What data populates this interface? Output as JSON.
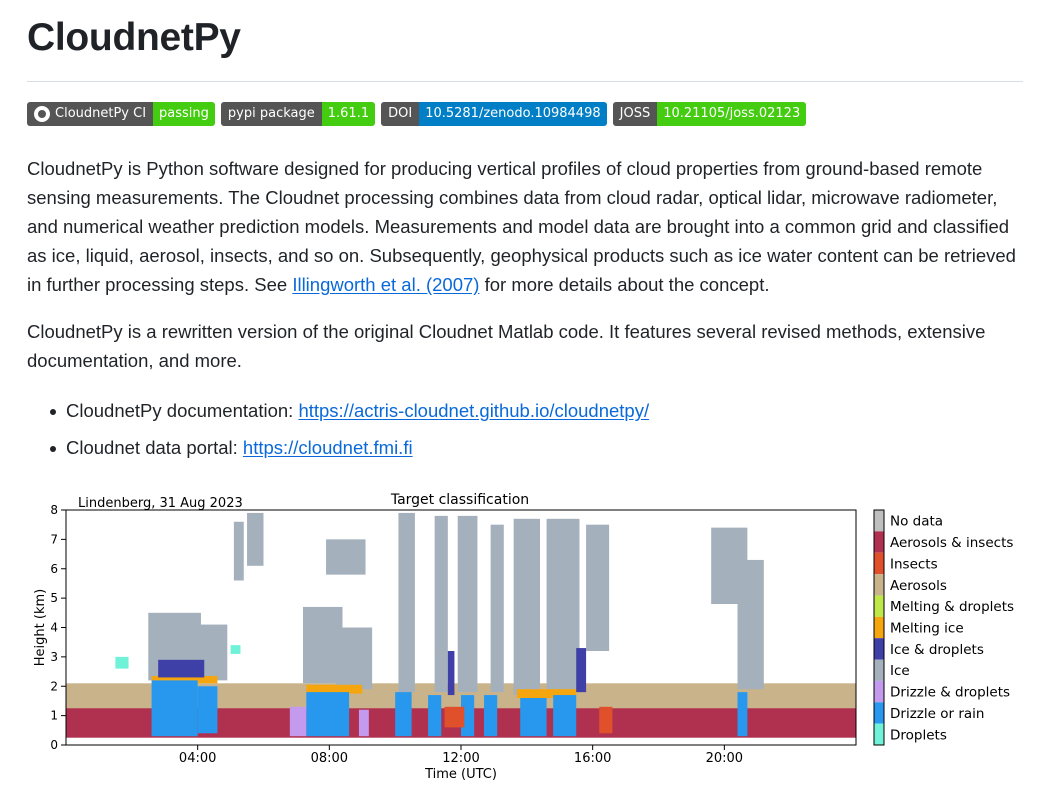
{
  "title": "CloudnetPy",
  "badges": [
    {
      "label": "CloudnetPy CI",
      "value": "passing",
      "color": "#4c1",
      "icon": "github-icon"
    },
    {
      "label": "pypi package",
      "value": "1.61.1",
      "color": "#4c1"
    },
    {
      "label": "DOI",
      "value": "10.5281/zenodo.10984498",
      "color": "#007ec6"
    },
    {
      "label": "JOSS",
      "value": "10.21105/joss.02123",
      "color": "#4c1"
    }
  ],
  "intro": {
    "before": "CloudnetPy is Python software designed for producing vertical profiles of cloud properties from ground-based remote sensing measurements. The Cloudnet processing combines data from cloud radar, optical lidar, microwave radiometer, and numerical weather prediction models. Measurements and model data are brought into a common grid and classified as ice, liquid, aerosol, insects, and so on. Subsequently, geophysical products such as ice water content can be retrieved in further processing steps. See ",
    "link": "Illingworth et al. (2007)",
    "after": " for more details about the concept."
  },
  "rewrite": "CloudnetPy is a rewritten version of the original Cloudnet Matlab code. It features several revised methods, extensive documentation, and more.",
  "links": [
    {
      "label": "CloudnetPy documentation: ",
      "url": "https://actris-cloudnet.github.io/cloudnetpy/"
    },
    {
      "label": "Cloudnet data portal: ",
      "url": "https://cloudnet.fmi.fi"
    }
  ],
  "chart_data": {
    "type": "heatmap",
    "title": "Target classification",
    "subtitle": "Lindenberg, 31 Aug 2023",
    "xlabel": "Time (UTC)",
    "ylabel": "Height (km)",
    "xlim": [
      0,
      24
    ],
    "ylim": [
      0,
      8
    ],
    "xticks": [
      4,
      8,
      12,
      16,
      20
    ],
    "xtick_labels": [
      "04:00",
      "08:00",
      "12:00",
      "16:00",
      "20:00"
    ],
    "yticks": [
      0,
      1,
      2,
      3,
      4,
      5,
      6,
      7,
      8
    ],
    "legend_placement": "right",
    "classes": [
      {
        "name": "No data",
        "color": "#bfbfbf"
      },
      {
        "name": "Aerosols & insects",
        "color": "#b03050"
      },
      {
        "name": "Insects",
        "color": "#e0502a"
      },
      {
        "name": "Aerosols",
        "color": "#c9b38a"
      },
      {
        "name": "Melting & droplets",
        "color": "#bde847"
      },
      {
        "name": "Melting ice",
        "color": "#f5a50d"
      },
      {
        "name": "Ice & droplets",
        "color": "#3f3fa8"
      },
      {
        "name": "Ice",
        "color": "#a4b1bc"
      },
      {
        "name": "Drizzle & droplets",
        "color": "#c49aee"
      },
      {
        "name": "Drizzle or rain",
        "color": "#2898ee"
      },
      {
        "name": "Droplets",
        "color": "#6ff2d8"
      }
    ],
    "regions": [
      {
        "cls": 3,
        "x0": 0,
        "x1": 24,
        "y0": 0.25,
        "y1": 2.1
      },
      {
        "cls": 1,
        "x0": 0,
        "x1": 24,
        "y0": 0.25,
        "y1": 1.25
      },
      {
        "cls": 7,
        "x0": 2.5,
        "x1": 4.1,
        "y0": 2.2,
        "y1": 4.5
      },
      {
        "cls": 7,
        "x0": 3.7,
        "x1": 4.9,
        "y0": 2.2,
        "y1": 4.1
      },
      {
        "cls": 7,
        "x0": 5.1,
        "x1": 5.4,
        "y0": 5.6,
        "y1": 7.6
      },
      {
        "cls": 7,
        "x0": 5.5,
        "x1": 6.0,
        "y0": 6.1,
        "y1": 7.9
      },
      {
        "cls": 7,
        "x0": 7.2,
        "x1": 8.4,
        "y0": 2.1,
        "y1": 4.7
      },
      {
        "cls": 7,
        "x0": 8.2,
        "x1": 9.3,
        "y0": 1.9,
        "y1": 4.0
      },
      {
        "cls": 7,
        "x0": 7.9,
        "x1": 9.1,
        "y0": 5.8,
        "y1": 7.0
      },
      {
        "cls": 7,
        "x0": 10.1,
        "x1": 10.6,
        "y0": 1.8,
        "y1": 7.9
      },
      {
        "cls": 7,
        "x0": 11.2,
        "x1": 11.6,
        "y0": 1.8,
        "y1": 7.8
      },
      {
        "cls": 7,
        "x0": 11.9,
        "x1": 12.5,
        "y0": 1.8,
        "y1": 7.8
      },
      {
        "cls": 7,
        "x0": 12.9,
        "x1": 13.3,
        "y0": 1.8,
        "y1": 7.5
      },
      {
        "cls": 7,
        "x0": 13.6,
        "x1": 14.4,
        "y0": 1.7,
        "y1": 7.7
      },
      {
        "cls": 7,
        "x0": 14.6,
        "x1": 15.6,
        "y0": 1.9,
        "y1": 7.7
      },
      {
        "cls": 7,
        "x0": 15.8,
        "x1": 16.5,
        "y0": 3.2,
        "y1": 7.5
      },
      {
        "cls": 7,
        "x0": 19.6,
        "x1": 20.7,
        "y0": 4.8,
        "y1": 7.4
      },
      {
        "cls": 7,
        "x0": 20.4,
        "x1": 21.2,
        "y0": 1.9,
        "y1": 6.3
      },
      {
        "cls": 5,
        "x0": 2.6,
        "x1": 4.6,
        "y0": 2.1,
        "y1": 2.35
      },
      {
        "cls": 5,
        "x0": 7.3,
        "x1": 9.0,
        "y0": 1.75,
        "y1": 2.05
      },
      {
        "cls": 5,
        "x0": 13.7,
        "x1": 15.5,
        "y0": 1.6,
        "y1": 1.9
      },
      {
        "cls": 9,
        "x0": 2.6,
        "x1": 4.0,
        "y0": 0.3,
        "y1": 2.2
      },
      {
        "cls": 9,
        "x0": 4.0,
        "x1": 4.6,
        "y0": 0.4,
        "y1": 2.0
      },
      {
        "cls": 9,
        "x0": 7.3,
        "x1": 8.6,
        "y0": 0.3,
        "y1": 1.8
      },
      {
        "cls": 9,
        "x0": 10.0,
        "x1": 10.5,
        "y0": 0.3,
        "y1": 1.8
      },
      {
        "cls": 9,
        "x0": 11.0,
        "x1": 11.4,
        "y0": 0.3,
        "y1": 1.7
      },
      {
        "cls": 9,
        "x0": 12.0,
        "x1": 12.4,
        "y0": 0.3,
        "y1": 1.7
      },
      {
        "cls": 9,
        "x0": 12.7,
        "x1": 13.1,
        "y0": 0.3,
        "y1": 1.7
      },
      {
        "cls": 9,
        "x0": 13.8,
        "x1": 14.6,
        "y0": 0.3,
        "y1": 1.6
      },
      {
        "cls": 9,
        "x0": 14.8,
        "x1": 15.5,
        "y0": 0.3,
        "y1": 1.7
      },
      {
        "cls": 9,
        "x0": 20.4,
        "x1": 20.7,
        "y0": 0.3,
        "y1": 1.8
      },
      {
        "cls": 8,
        "x0": 6.8,
        "x1": 7.3,
        "y0": 0.3,
        "y1": 1.3
      },
      {
        "cls": 8,
        "x0": 8.9,
        "x1": 9.2,
        "y0": 0.3,
        "y1": 1.2
      },
      {
        "cls": 6,
        "x0": 2.8,
        "x1": 4.2,
        "y0": 2.3,
        "y1": 2.9
      },
      {
        "cls": 6,
        "x0": 15.5,
        "x1": 15.8,
        "y0": 1.8,
        "y1": 3.3
      },
      {
        "cls": 6,
        "x0": 11.6,
        "x1": 11.8,
        "y0": 1.7,
        "y1": 3.2
      },
      {
        "cls": 10,
        "x0": 1.5,
        "x1": 1.9,
        "y0": 2.6,
        "y1": 3.0
      },
      {
        "cls": 10,
        "x0": 5.0,
        "x1": 5.3,
        "y0": 3.1,
        "y1": 3.4
      },
      {
        "cls": 2,
        "x0": 11.5,
        "x1": 12.1,
        "y0": 0.6,
        "y1": 1.3
      },
      {
        "cls": 2,
        "x0": 16.2,
        "x1": 16.6,
        "y0": 0.4,
        "y1": 1.3
      }
    ]
  }
}
